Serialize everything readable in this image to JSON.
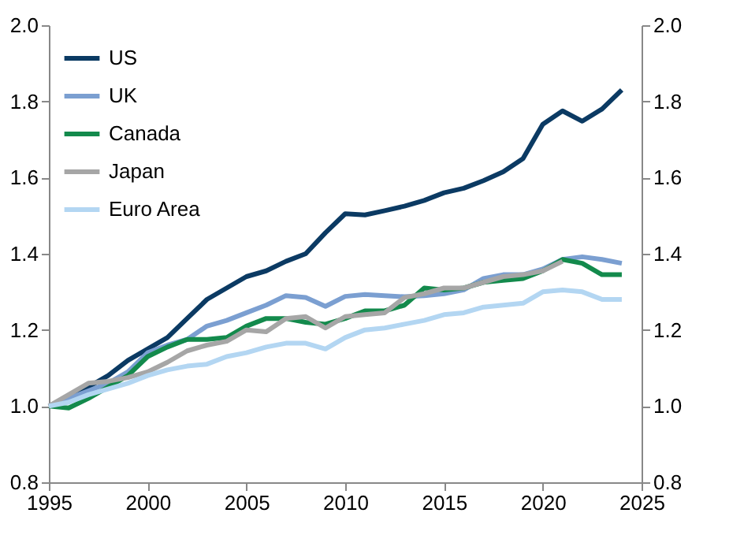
{
  "chart_data": {
    "type": "line",
    "x": [
      1995,
      1996,
      1997,
      1998,
      1999,
      2000,
      2001,
      2002,
      2003,
      2004,
      2005,
      2006,
      2007,
      2008,
      2009,
      2010,
      2011,
      2012,
      2013,
      2014,
      2015,
      2016,
      2017,
      2018,
      2019,
      2020,
      2021,
      2022,
      2023,
      2024
    ],
    "series": [
      {
        "name": "US",
        "color": "#0b3a63",
        "values": [
          1.0,
          1.02,
          1.05,
          1.08,
          1.12,
          1.15,
          1.18,
          1.23,
          1.28,
          1.31,
          1.34,
          1.355,
          1.38,
          1.4,
          1.455,
          1.505,
          1.502,
          1.513,
          1.525,
          1.54,
          1.56,
          1.572,
          1.592,
          1.615,
          1.65,
          1.74,
          1.775,
          1.748,
          1.78,
          1.83
        ]
      },
      {
        "name": "UK",
        "color": "#7b9fd1",
        "values": [
          1.0,
          1.02,
          1.04,
          1.06,
          1.09,
          1.14,
          1.16,
          1.175,
          1.21,
          1.225,
          1.245,
          1.265,
          1.29,
          1.285,
          1.262,
          1.288,
          1.293,
          1.29,
          1.287,
          1.29,
          1.295,
          1.305,
          1.335,
          1.345,
          1.345,
          1.36,
          1.385,
          1.392,
          1.385,
          1.375
        ]
      },
      {
        "name": "Canada",
        "color": "#138a4c",
        "values": [
          1.0,
          0.995,
          1.02,
          1.05,
          1.08,
          1.13,
          1.155,
          1.175,
          1.175,
          1.18,
          1.21,
          1.23,
          1.23,
          1.22,
          1.215,
          1.23,
          1.25,
          1.25,
          1.265,
          1.31,
          1.305,
          1.31,
          1.325,
          1.33,
          1.335,
          1.355,
          1.385,
          1.375,
          1.345,
          1.345
        ]
      },
      {
        "name": "Japan",
        "color": "#a6a6a6",
        "values": [
          1.0,
          1.03,
          1.06,
          1.065,
          1.075,
          1.09,
          1.115,
          1.145,
          1.16,
          1.17,
          1.2,
          1.195,
          1.23,
          1.235,
          1.205,
          1.235,
          1.24,
          1.245,
          1.285,
          1.295,
          1.31,
          1.31,
          1.325,
          1.34,
          1.345,
          1.355,
          1.38,
          null,
          null,
          null
        ]
      },
      {
        "name": "Euro Area",
        "color": "#b3d6f2",
        "values": [
          1.0,
          1.01,
          1.03,
          1.045,
          1.06,
          1.08,
          1.095,
          1.105,
          1.11,
          1.13,
          1.14,
          1.155,
          1.165,
          1.165,
          1.15,
          1.18,
          1.2,
          1.205,
          1.215,
          1.225,
          1.24,
          1.245,
          1.26,
          1.265,
          1.27,
          1.3,
          1.305,
          1.3,
          1.28,
          1.28
        ]
      }
    ],
    "xlim": [
      1995,
      2025
    ],
    "xticks": [
      1995,
      2000,
      2005,
      2010,
      2015,
      2020,
      2025
    ],
    "ylim": [
      0.8,
      2.0
    ],
    "yticks": [
      {
        "value": 0.8,
        "label": "0.8"
      },
      {
        "value": 1.0,
        "label": "1.0"
      },
      {
        "value": 1.2,
        "label": "1.2"
      },
      {
        "value": 1.4,
        "label": "1.4"
      },
      {
        "value": 1.6,
        "label": "1.6"
      },
      {
        "value": 1.8,
        "label": "1.8"
      },
      {
        "value": 2.0,
        "label": "2.0"
      }
    ],
    "y2lim": [
      0.8,
      2.0
    ],
    "y2ticks": [
      {
        "value": 0.8,
        "label": "0.8"
      },
      {
        "value": 1.0,
        "label": "1.0"
      },
      {
        "value": 1.2,
        "label": "1.2"
      },
      {
        "value": 1.4,
        "label": "1.4"
      },
      {
        "value": 1.6,
        "label": "1.6"
      },
      {
        "value": 1.8,
        "label": "1.8"
      },
      {
        "value": 2.0,
        "label": "2.0"
      }
    ],
    "grid": false,
    "legend": "top left",
    "line_style": "solid",
    "marker": "none"
  }
}
